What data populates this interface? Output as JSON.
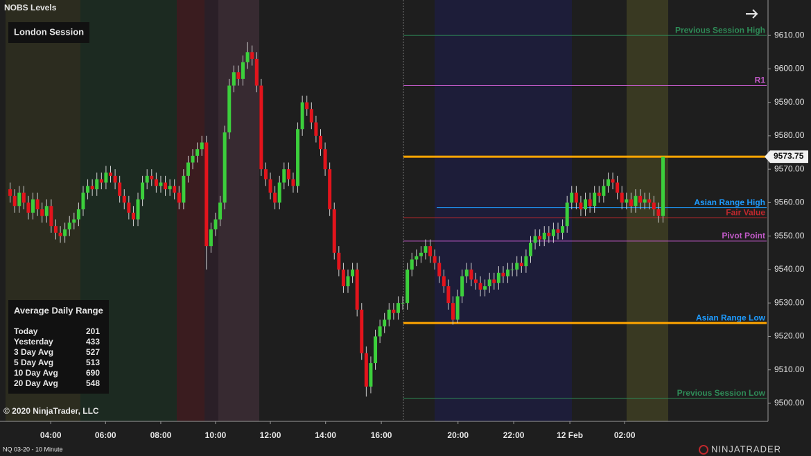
{
  "header": {
    "title": "NOBS Levels"
  },
  "session_label": "London Session",
  "adr": {
    "title": "Average Daily Range",
    "rows": [
      [
        "Today",
        201
      ],
      [
        "Yesterday",
        433
      ],
      [
        "3 Day Avg",
        527
      ],
      [
        "5 Day Avg",
        513
      ],
      [
        "10 Day Avg",
        690
      ],
      [
        "20 Day Avg",
        548
      ]
    ]
  },
  "copyright": "© 2020 NinjaTrader, LLC",
  "instrument": "NQ 03-20 - 10 Minute",
  "brand": "NINJATRADER",
  "chart_data": {
    "type": "candlestick",
    "up_color": "#3ccf3c",
    "down_color": "#e3141c",
    "open": [
      9564,
      9562,
      9559,
      9563,
      9560,
      9557,
      9561,
      9558,
      9556,
      9559,
      9553,
      9551,
      9550,
      9552,
      9554,
      9555,
      9558,
      9563,
      9565,
      9564,
      9567,
      9566,
      9569,
      9568,
      9566,
      9562,
      9560,
      9557,
      9555,
      9561,
      9566,
      9568,
      9567,
      9565,
      9566,
      9564,
      9565,
      9563,
      9560,
      9568,
      9572,
      9574,
      9576,
      9578,
      9547,
      9552,
      9555,
      9560,
      9581,
      9595,
      9599,
      9597,
      9602,
      9605,
      9603,
      9595,
      9570,
      9567,
      9563,
      9560,
      9566,
      9570,
      9567,
      9565,
      9582,
      9590,
      9588,
      9584,
      9580,
      9576,
      9570,
      9558,
      9545,
      9540,
      9535,
      9538,
      9540,
      9528,
      9515,
      9505,
      9512,
      9520,
      9523,
      9525,
      9528,
      9527,
      9530,
      9530,
      9540,
      9543,
      9544,
      9545,
      9547,
      9544,
      9542,
      9538,
      9535,
      9530,
      9525,
      9532,
      9538,
      9540,
      9537,
      9536,
      9534,
      9535,
      9537,
      9536,
      9539,
      9538,
      9540,
      9540,
      9542,
      9541,
      9544,
      9548,
      9550,
      9549,
      9551,
      9550,
      9552,
      9551,
      9553,
      9560,
      9563,
      9560,
      9558,
      9561,
      9559,
      9563,
      9562,
      9565,
      9567,
      9566,
      9563,
      9560,
      9561,
      9559,
      9562,
      9560,
      9561,
      9560,
      9558,
      9556
    ],
    "high": [
      9566,
      9564,
      9565,
      9565,
      9562,
      9563,
      9563,
      9560,
      9561,
      9561,
      9555,
      9553,
      9554,
      9556,
      9557,
      9560,
      9565,
      9567,
      9567,
      9569,
      9569,
      9571,
      9571,
      9570,
      9568,
      9564,
      9562,
      9559,
      9563,
      9568,
      9570,
      9570,
      9569,
      9568,
      9568,
      9567,
      9567,
      9565,
      9570,
      9574,
      9576,
      9578,
      9580,
      9580,
      9554,
      9557,
      9562,
      9583,
      9597,
      9601,
      9601,
      9604,
      9608,
      9607,
      9605,
      9597,
      9572,
      9569,
      9565,
      9568,
      9572,
      9572,
      9569,
      9584,
      9592,
      9592,
      9590,
      9586,
      9582,
      9578,
      9572,
      9560,
      9547,
      9542,
      9540,
      9542,
      9542,
      9530,
      9517,
      9514,
      9522,
      9525,
      9527,
      9530,
      9530,
      9532,
      9532,
      9542,
      9545,
      9546,
      9547,
      9549,
      9549,
      9546,
      9544,
      9540,
      9537,
      9532,
      9534,
      9540,
      9542,
      9542,
      9539,
      9538,
      9537,
      9539,
      9539,
      9541,
      9541,
      9542,
      9542,
      9544,
      9544,
      9546,
      9550,
      9552,
      9552,
      9553,
      9553,
      9554,
      9554,
      9555,
      9562,
      9565,
      9565,
      9562,
      9563,
      9563,
      9565,
      9565,
      9567,
      9569,
      9569,
      9568,
      9565,
      9563,
      9563,
      9564,
      9564,
      9563,
      9563,
      9562,
      9560,
      9573.75
    ],
    "low": [
      9560,
      9557,
      9557,
      9558,
      9555,
      9555,
      9556,
      9554,
      9554,
      9551,
      9549,
      9548,
      9548,
      9550,
      9552,
      9553,
      9556,
      9561,
      9562,
      9562,
      9564,
      9564,
      9566,
      9564,
      9560,
      9558,
      9555,
      9553,
      9553,
      9559,
      9564,
      9565,
      9563,
      9563,
      9562,
      9562,
      9561,
      9558,
      9558,
      9566,
      9570,
      9572,
      9574,
      9540,
      9545,
      9550,
      9553,
      9558,
      9579,
      9593,
      9595,
      9595,
      9600,
      9601,
      9593,
      9568,
      9565,
      9561,
      9558,
      9558,
      9564,
      9565,
      9563,
      9563,
      9580,
      9586,
      9582,
      9578,
      9574,
      9568,
      9556,
      9543,
      9538,
      9533,
      9533,
      9536,
      9526,
      9513,
      9502,
      9503,
      9510,
      9518,
      9521,
      9523,
      9525,
      9525,
      9528,
      9528,
      9538,
      9541,
      9542,
      9543,
      9542,
      9540,
      9536,
      9533,
      9528,
      9523.5,
      9524,
      9530,
      9536,
      9535,
      9534,
      9532,
      9532,
      9533,
      9534,
      9534,
      9536,
      9536,
      9538,
      9538,
      9539,
      9539,
      9542,
      9546,
      9547,
      9547,
      9548,
      9548,
      9549,
      9549,
      9551,
      9558,
      9558,
      9556,
      9556,
      9557,
      9557,
      9560,
      9560,
      9563,
      9564,
      9561,
      9558,
      9558,
      9557,
      9557,
      9558,
      9558,
      9558,
      9556,
      9554,
      9554
    ],
    "close": [
      9562,
      9559,
      9563,
      9560,
      9557,
      9561,
      9558,
      9556,
      9559,
      9553,
      9551,
      9550,
      9552,
      9554,
      9555,
      9558,
      9563,
      9565,
      9564,
      9567,
      9566,
      9569,
      9568,
      9566,
      9562,
      9560,
      9557,
      9555,
      9561,
      9566,
      9568,
      9567,
      9565,
      9566,
      9564,
      9565,
      9563,
      9560,
      9568,
      9572,
      9574,
      9576,
      9578,
      9547,
      9552,
      9555,
      9560,
      9581,
      9595,
      9599,
      9597,
      9602,
      9605,
      9603,
      9595,
      9570,
      9567,
      9563,
      9560,
      9566,
      9570,
      9567,
      9565,
      9582,
      9590,
      9588,
      9584,
      9580,
      9576,
      9570,
      9558,
      9545,
      9540,
      9535,
      9538,
      9540,
      9528,
      9515,
      9505,
      9512,
      9520,
      9523,
      9525,
      9528,
      9527,
      9530,
      9530,
      9540,
      9543,
      9544,
      9545,
      9547,
      9544,
      9542,
      9538,
      9535,
      9530,
      9525,
      9532,
      9538,
      9540,
      9537,
      9536,
      9534,
      9535,
      9537,
      9536,
      9539,
      9538,
      9540,
      9540,
      9542,
      9541,
      9544,
      9548,
      9550,
      9549,
      9551,
      9550,
      9552,
      9551,
      9553,
      9560,
      9563,
      9560,
      9558,
      9561,
      9559,
      9563,
      9562,
      9565,
      9567,
      9566,
      9563,
      9560,
      9561,
      9559,
      9562,
      9560,
      9561,
      9560,
      9558,
      9556,
      9573.75
    ],
    "levels": [
      {
        "name": "Previous Session High",
        "value": 9610,
        "color": "#2e8b57"
      },
      {
        "name": "R1",
        "value": 9595,
        "color": "#c25ac8"
      },
      {
        "name": "Asian Range High",
        "value": 9558.5,
        "color": "#1e9bff"
      },
      {
        "name": "Fair Value",
        "value": 9555.5,
        "color": "#c0282d"
      },
      {
        "name": "Pivot Point",
        "value": 9548.5,
        "color": "#c25ac8"
      },
      {
        "name": "Asian Range Low",
        "value": 9524,
        "color": "#1e9bff"
      },
      {
        "name": "Previous Session Low",
        "value": 9501.5,
        "color": "#2e8b57"
      }
    ],
    "lines": [
      {
        "value": 9573.75,
        "color": "#ffa500"
      },
      {
        "value": 9524,
        "color": "#ffa500"
      }
    ],
    "xlim": [
      -1,
      166
    ],
    "xticks": [
      {
        "value": 8.9,
        "label": "04:00"
      },
      {
        "value": 20.9,
        "label": "06:00"
      },
      {
        "value": 33,
        "label": "08:00"
      },
      {
        "value": 45,
        "label": "10:00"
      },
      {
        "value": 57,
        "label": "12:00"
      },
      {
        "value": 69.1,
        "label": "14:00"
      },
      {
        "value": 81.3,
        "label": "16:00"
      },
      {
        "value": 98.1,
        "label": "20:00"
      },
      {
        "value": 110.3,
        "label": "22:00"
      },
      {
        "value": 122.6,
        "label": "12 Feb"
      },
      {
        "value": 134.6,
        "label": "02:00"
      }
    ],
    "ylim": [
      9494.6,
      9620.6
    ],
    "yticks": [
      {
        "value": 9500,
        "label": "9500.00"
      },
      {
        "value": 9510,
        "label": "9510.00"
      },
      {
        "value": 9520,
        "label": "9520.00"
      },
      {
        "value": 9530,
        "label": "9530.00"
      },
      {
        "value": 9540,
        "label": "9540.00"
      },
      {
        "value": 9550,
        "label": "9550.00"
      },
      {
        "value": 9560,
        "label": "9560.00"
      },
      {
        "value": 9570,
        "label": "9570.00"
      },
      {
        "value": 9580,
        "label": "9580.00"
      },
      {
        "value": 9590,
        "label": "9590.00"
      },
      {
        "value": 9600,
        "label": "9600.00"
      },
      {
        "value": 9610,
        "label": "9610.00"
      }
    ]
  }
}
